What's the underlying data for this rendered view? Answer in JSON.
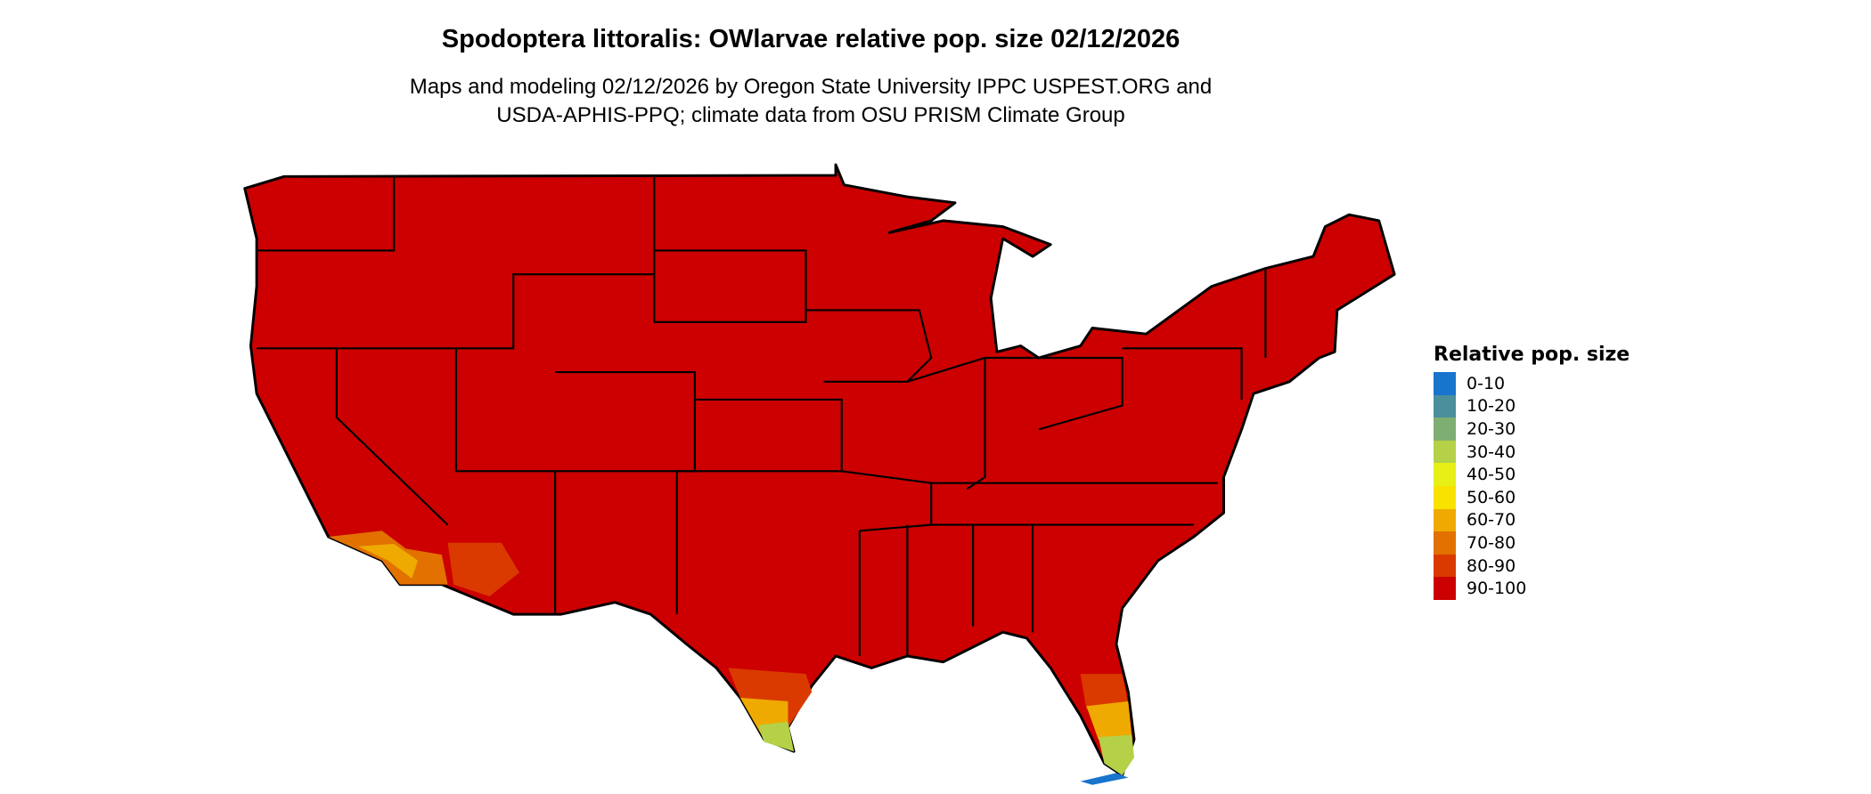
{
  "title": "Spodoptera littoralis: OWlarvae relative pop. size 02/12/2026",
  "subtitle_line1": "Maps and modeling 02/12/2026 by Oregon State University IPPC USPEST.ORG and",
  "subtitle_line2": "USDA-APHIS-PPQ; climate data from OSU PRISM Climate Group",
  "legend": {
    "title": "Relative pop. size",
    "items": [
      {
        "label": "0-10",
        "color": "#1874cd"
      },
      {
        "label": "10-20",
        "color": "#4a8f9b"
      },
      {
        "label": "20-30",
        "color": "#7eae72"
      },
      {
        "label": "30-40",
        "color": "#b4d147"
      },
      {
        "label": "40-50",
        "color": "#e6ef16"
      },
      {
        "label": "50-60",
        "color": "#f9e200"
      },
      {
        "label": "60-70",
        "color": "#eeaa00"
      },
      {
        "label": "70-80",
        "color": "#e27100"
      },
      {
        "label": "80-90",
        "color": "#da3a00"
      },
      {
        "label": "90-100",
        "color": "#cc0000"
      }
    ]
  },
  "map": {
    "region": "Contiguous United States",
    "dominant_class": "90-100",
    "base_color": "#cc0000",
    "border_color": "#000000"
  }
}
